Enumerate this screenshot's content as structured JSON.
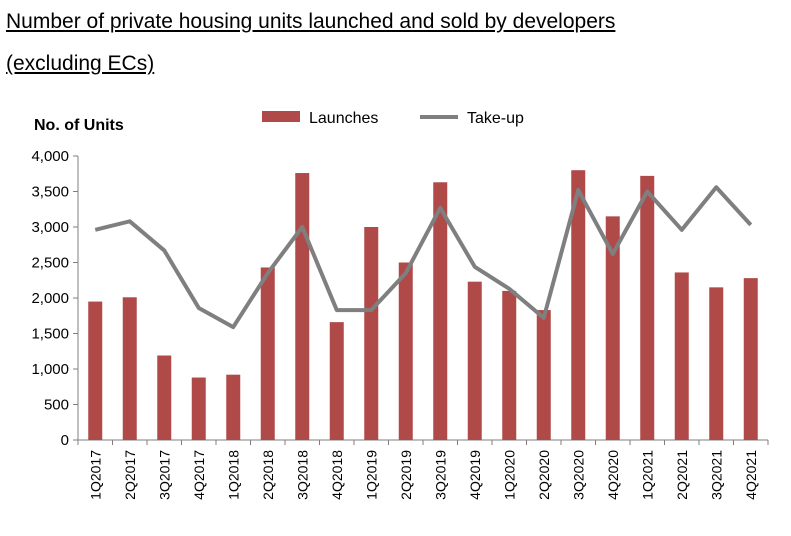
{
  "title": {
    "line1": "Number of private housing units launched and sold by developers",
    "line2": "(excluding ECs)"
  },
  "chart_data": {
    "type": "bar",
    "ylabel": "No. of Units",
    "ylim": [
      0,
      4000
    ],
    "yticks": [
      "0",
      "500",
      "1,000",
      "1,500",
      "2,000",
      "2,500",
      "3,000",
      "3,500",
      "4,000"
    ],
    "legend_position": "top",
    "categories": [
      "1Q2017",
      "2Q2017",
      "3Q2017",
      "4Q2017",
      "1Q2018",
      "2Q2018",
      "3Q2018",
      "4Q2018",
      "1Q2019",
      "2Q2019",
      "3Q2019",
      "4Q2019",
      "1Q2020",
      "2Q2020",
      "3Q2020",
      "4Q2020",
      "1Q2021",
      "2Q2021",
      "3Q2021",
      "4Q2021"
    ],
    "series": [
      {
        "name": "Launches",
        "type": "bar",
        "color": "#b04a48",
        "values": [
          1950,
          2010,
          1190,
          880,
          920,
          2430,
          3760,
          1660,
          3000,
          2500,
          3630,
          2230,
          2100,
          1830,
          3800,
          3150,
          3720,
          2360,
          2150,
          2280
        ]
      },
      {
        "name": "Take-up",
        "type": "line",
        "color": "#7f7f7f",
        "values": [
          2960,
          3080,
          2670,
          1860,
          1590,
          2350,
          3000,
          1830,
          1830,
          2350,
          3270,
          2440,
          2130,
          1720,
          3520,
          2620,
          3500,
          2960,
          3560,
          3030
        ]
      }
    ]
  }
}
